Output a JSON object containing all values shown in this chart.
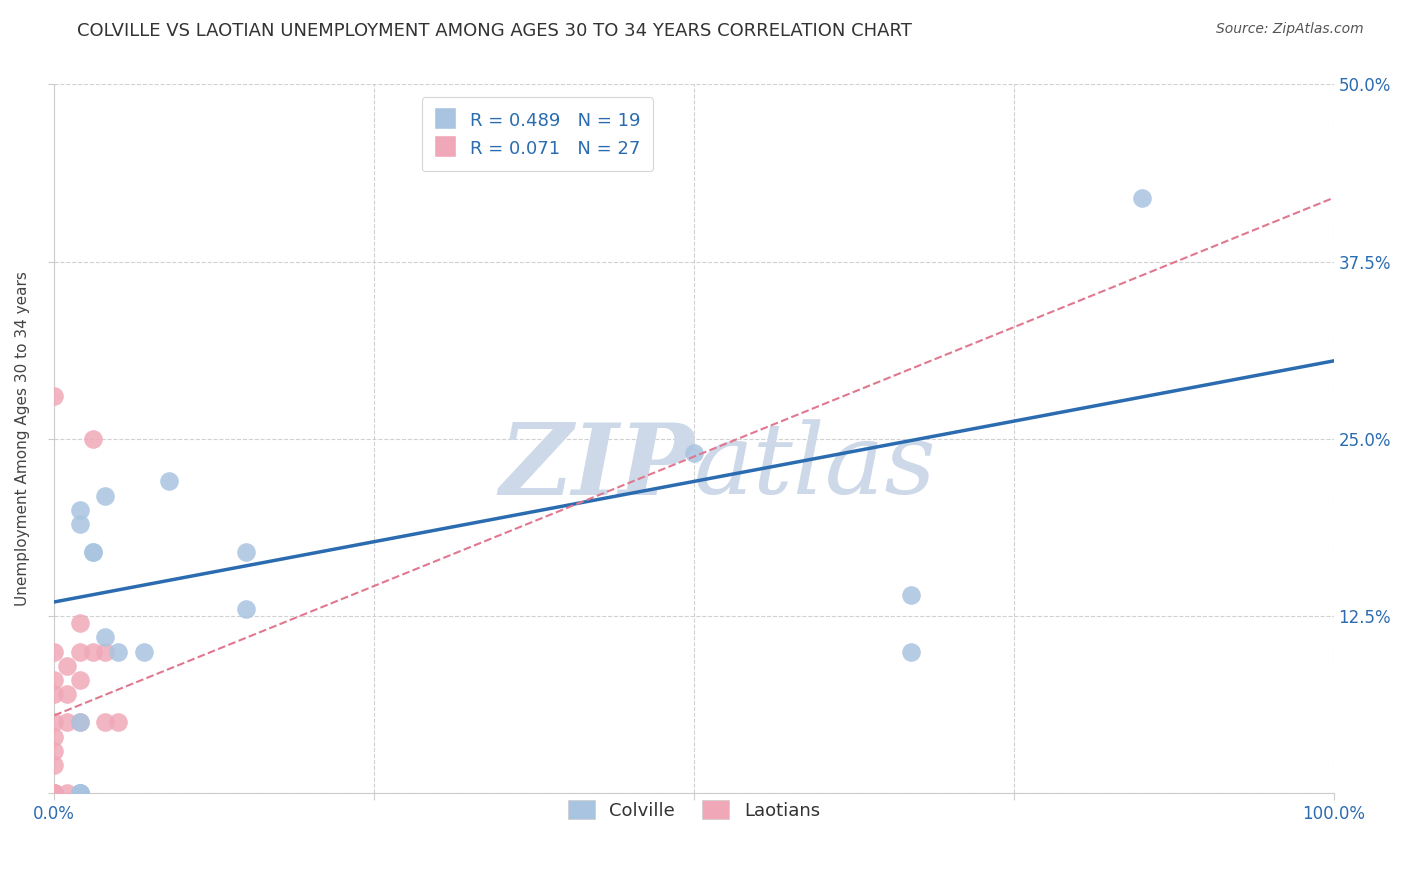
{
  "title": "COLVILLE VS LAOTIAN UNEMPLOYMENT AMONG AGES 30 TO 34 YEARS CORRELATION CHART",
  "source": "Source: ZipAtlas.com",
  "ylabel": "Unemployment Among Ages 30 to 34 years",
  "xlim": [
    0.0,
    1.0
  ],
  "ylim": [
    0.0,
    0.5
  ],
  "xticks": [
    0.0,
    0.25,
    0.5,
    0.75,
    1.0
  ],
  "xtick_labels": [
    "0.0%",
    "",
    "",
    "",
    "100.0%"
  ],
  "ytick_labels": [
    "",
    "12.5%",
    "25.0%",
    "37.5%",
    "50.0%"
  ],
  "yticks": [
    0.0,
    0.125,
    0.25,
    0.375,
    0.5
  ],
  "colville_R": 0.489,
  "colville_N": 19,
  "laotian_R": 0.071,
  "laotian_N": 27,
  "colville_color": "#a8c4e0",
  "colville_line_color": "#2b6cb0",
  "laotian_color": "#f0a8b8",
  "laotian_line_color": "#e07890",
  "background_color": "#ffffff",
  "grid_color": "#cccccc",
  "watermark_color": "#cdd8e8",
  "colville_x": [
    0.02,
    0.02,
    0.02,
    0.02,
    0.02,
    0.03,
    0.03,
    0.04,
    0.04,
    0.05,
    0.07,
    0.09,
    0.15,
    0.15,
    0.5,
    0.67,
    0.67,
    0.85,
    0.02
  ],
  "colville_y": [
    0.0,
    0.0,
    0.0,
    0.19,
    0.2,
    0.17,
    0.17,
    0.11,
    0.21,
    0.1,
    0.1,
    0.22,
    0.17,
    0.13,
    0.24,
    0.14,
    0.1,
    0.42,
    0.05
  ],
  "laotian_x": [
    0.0,
    0.0,
    0.0,
    0.0,
    0.0,
    0.0,
    0.0,
    0.0,
    0.0,
    0.0,
    0.0,
    0.0,
    0.0,
    0.01,
    0.01,
    0.01,
    0.01,
    0.02,
    0.02,
    0.02,
    0.02,
    0.02,
    0.03,
    0.03,
    0.04,
    0.04,
    0.05
  ],
  "laotian_y": [
    0.0,
    0.0,
    0.0,
    0.0,
    0.0,
    0.02,
    0.03,
    0.04,
    0.05,
    0.07,
    0.08,
    0.1,
    0.28,
    0.0,
    0.05,
    0.07,
    0.09,
    0.0,
    0.05,
    0.08,
    0.1,
    0.12,
    0.1,
    0.25,
    0.05,
    0.1,
    0.05
  ],
  "title_fontsize": 13,
  "axis_label_fontsize": 11,
  "tick_fontsize": 12,
  "legend_fontsize": 13,
  "colville_line_x": [
    0.0,
    1.0
  ],
  "colville_line_y": [
    0.135,
    0.305
  ],
  "laotian_line_x": [
    0.0,
    1.0
  ],
  "laotian_line_y": [
    0.055,
    0.42
  ]
}
